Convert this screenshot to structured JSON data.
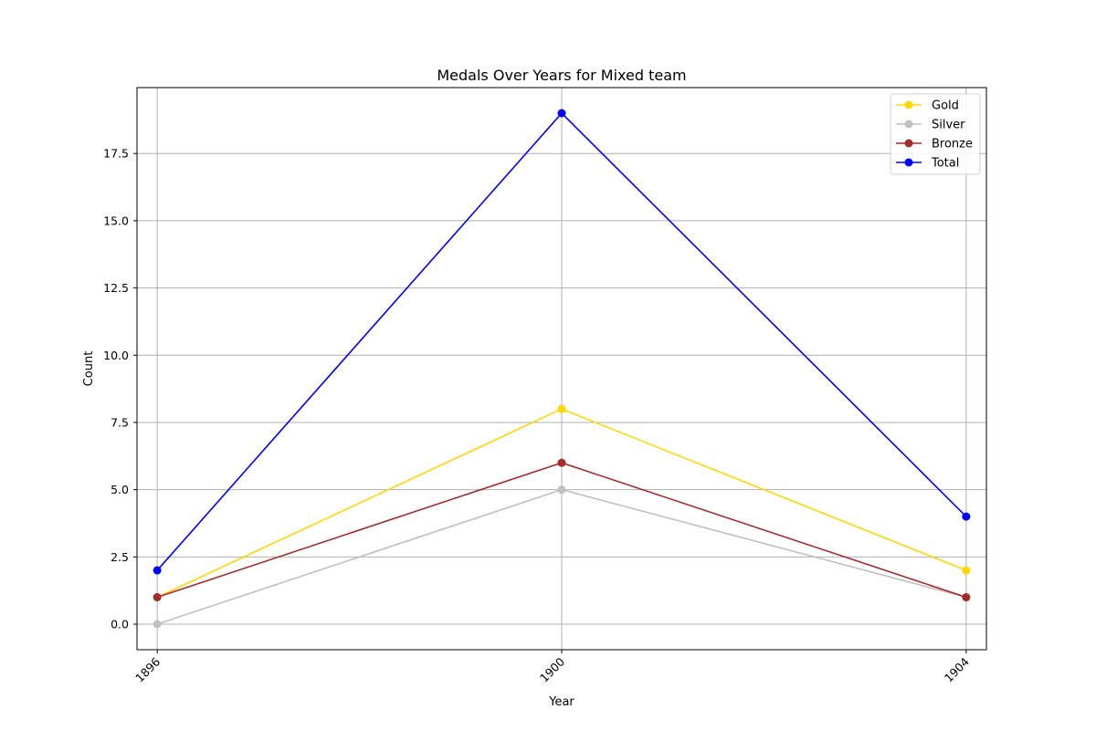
{
  "chart_data": {
    "type": "line",
    "title": "Medals Over Years for Mixed team",
    "xlabel": "Year",
    "ylabel": "Count",
    "categories": [
      "1896",
      "1900",
      "1904"
    ],
    "xlim": [
      1895.8,
      1904.2
    ],
    "ylim": [
      -0.95,
      19.95
    ],
    "yticks": [
      {
        "value": 0,
        "label": "0.0"
      },
      {
        "value": 2.5,
        "label": "2.5"
      },
      {
        "value": 5,
        "label": "5.0"
      },
      {
        "value": 7.5,
        "label": "7.5"
      },
      {
        "value": 10,
        "label": "10.0"
      },
      {
        "value": 12.5,
        "label": "12.5"
      },
      {
        "value": 15,
        "label": "15.0"
      },
      {
        "value": 17.5,
        "label": "17.5"
      }
    ],
    "grid": true,
    "legend_position": "top-right",
    "series": [
      {
        "name": "Gold",
        "color": "#ffd700",
        "values": [
          1,
          8,
          2
        ]
      },
      {
        "name": "Silver",
        "color": "#c0c0c0",
        "values": [
          0,
          5,
          1
        ]
      },
      {
        "name": "Bronze",
        "color": "#a52a2a",
        "values": [
          1,
          6,
          1
        ]
      },
      {
        "name": "Total",
        "color": "#0000ff",
        "values": [
          2,
          19,
          4
        ]
      }
    ]
  }
}
